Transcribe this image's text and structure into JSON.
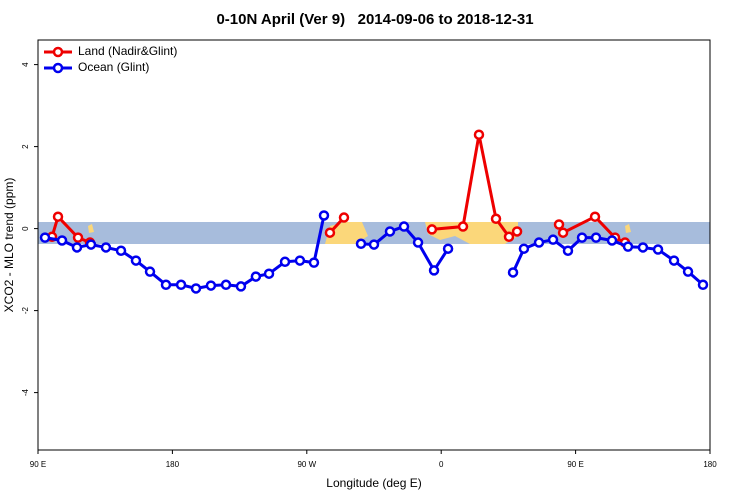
{
  "chart_data": {
    "type": "line",
    "title": "0-10N April (Ver 9)   2014-09-06 to 2018-12-31",
    "x_label": "Longitude (deg E)",
    "y_label": "XCO2 - MLO trend (ppm)",
    "xlim": [
      90,
      540
    ],
    "ylim": [
      -5.4,
      4.6
    ],
    "xticks": [
      {
        "value": 90,
        "label": "90 E"
      },
      180,
      {
        "value": 270,
        "label": "90 W"
      },
      {
        "value": 360,
        "label": "0"
      },
      {
        "value": 450,
        "label": "90 E"
      },
      {
        "value": 540,
        "label": "180"
      }
    ],
    "yticks": [
      -4,
      -2,
      0,
      2,
      4
    ],
    "legend": "top-left",
    "series": [
      {
        "name": "Land (Nadir&Glint)",
        "color": "#ee0000",
        "x": [
          99.4,
          103.4,
          116.8,
          124.8,
          null,
          285.5,
          294.9,
          null,
          353.8,
          374.6,
          385.3,
          396.7,
          405.4,
          410.8,
          null,
          438.9,
          441.6,
          463,
          476.4,
          483.1
        ],
        "values": [
          -0.2,
          0.29,
          -0.22,
          -0.34,
          null,
          -0.1,
          0.27,
          null,
          -0.02,
          0.05,
          2.29,
          0.24,
          -0.2,
          -0.07,
          null,
          0.1,
          -0.1,
          0.29,
          -0.22,
          -0.34
        ]
      },
      {
        "name": "Ocean (Glint)",
        "color": "#0000ee",
        "x": [
          94.7,
          106.1,
          116.1,
          125.5,
          135.5,
          145.6,
          155.6,
          165,
          175.7,
          185.8,
          195.8,
          205.8,
          215.9,
          225.9,
          235.9,
          244.7,
          255.4,
          265.4,
          274.8,
          281.5,
          null,
          306.3,
          315,
          325.7,
          335.1,
          344.5,
          355.2,
          364.6,
          null,
          408.1,
          415.4,
          425.5,
          434.9,
          444.9,
          454.3,
          463.7,
          474.4,
          485.1,
          495.1,
          505.2,
          515.9,
          525.3,
          535.3
        ],
        "values": [
          -0.22,
          -0.29,
          -0.46,
          -0.39,
          -0.46,
          -0.54,
          -0.78,
          -1.05,
          -1.37,
          -1.37,
          -1.46,
          -1.39,
          -1.37,
          -1.41,
          -1.17,
          -1.1,
          -0.81,
          -0.78,
          -0.83,
          0.32,
          null,
          -0.37,
          -0.39,
          -0.07,
          0.05,
          -0.34,
          -1.02,
          -0.49,
          null,
          -1.07,
          -0.49,
          -0.34,
          -0.27,
          -0.54,
          -0.22,
          -0.22,
          -0.29,
          -0.44,
          -0.46,
          -0.51,
          -0.78,
          -1.05,
          -1.37
        ]
      }
    ]
  }
}
